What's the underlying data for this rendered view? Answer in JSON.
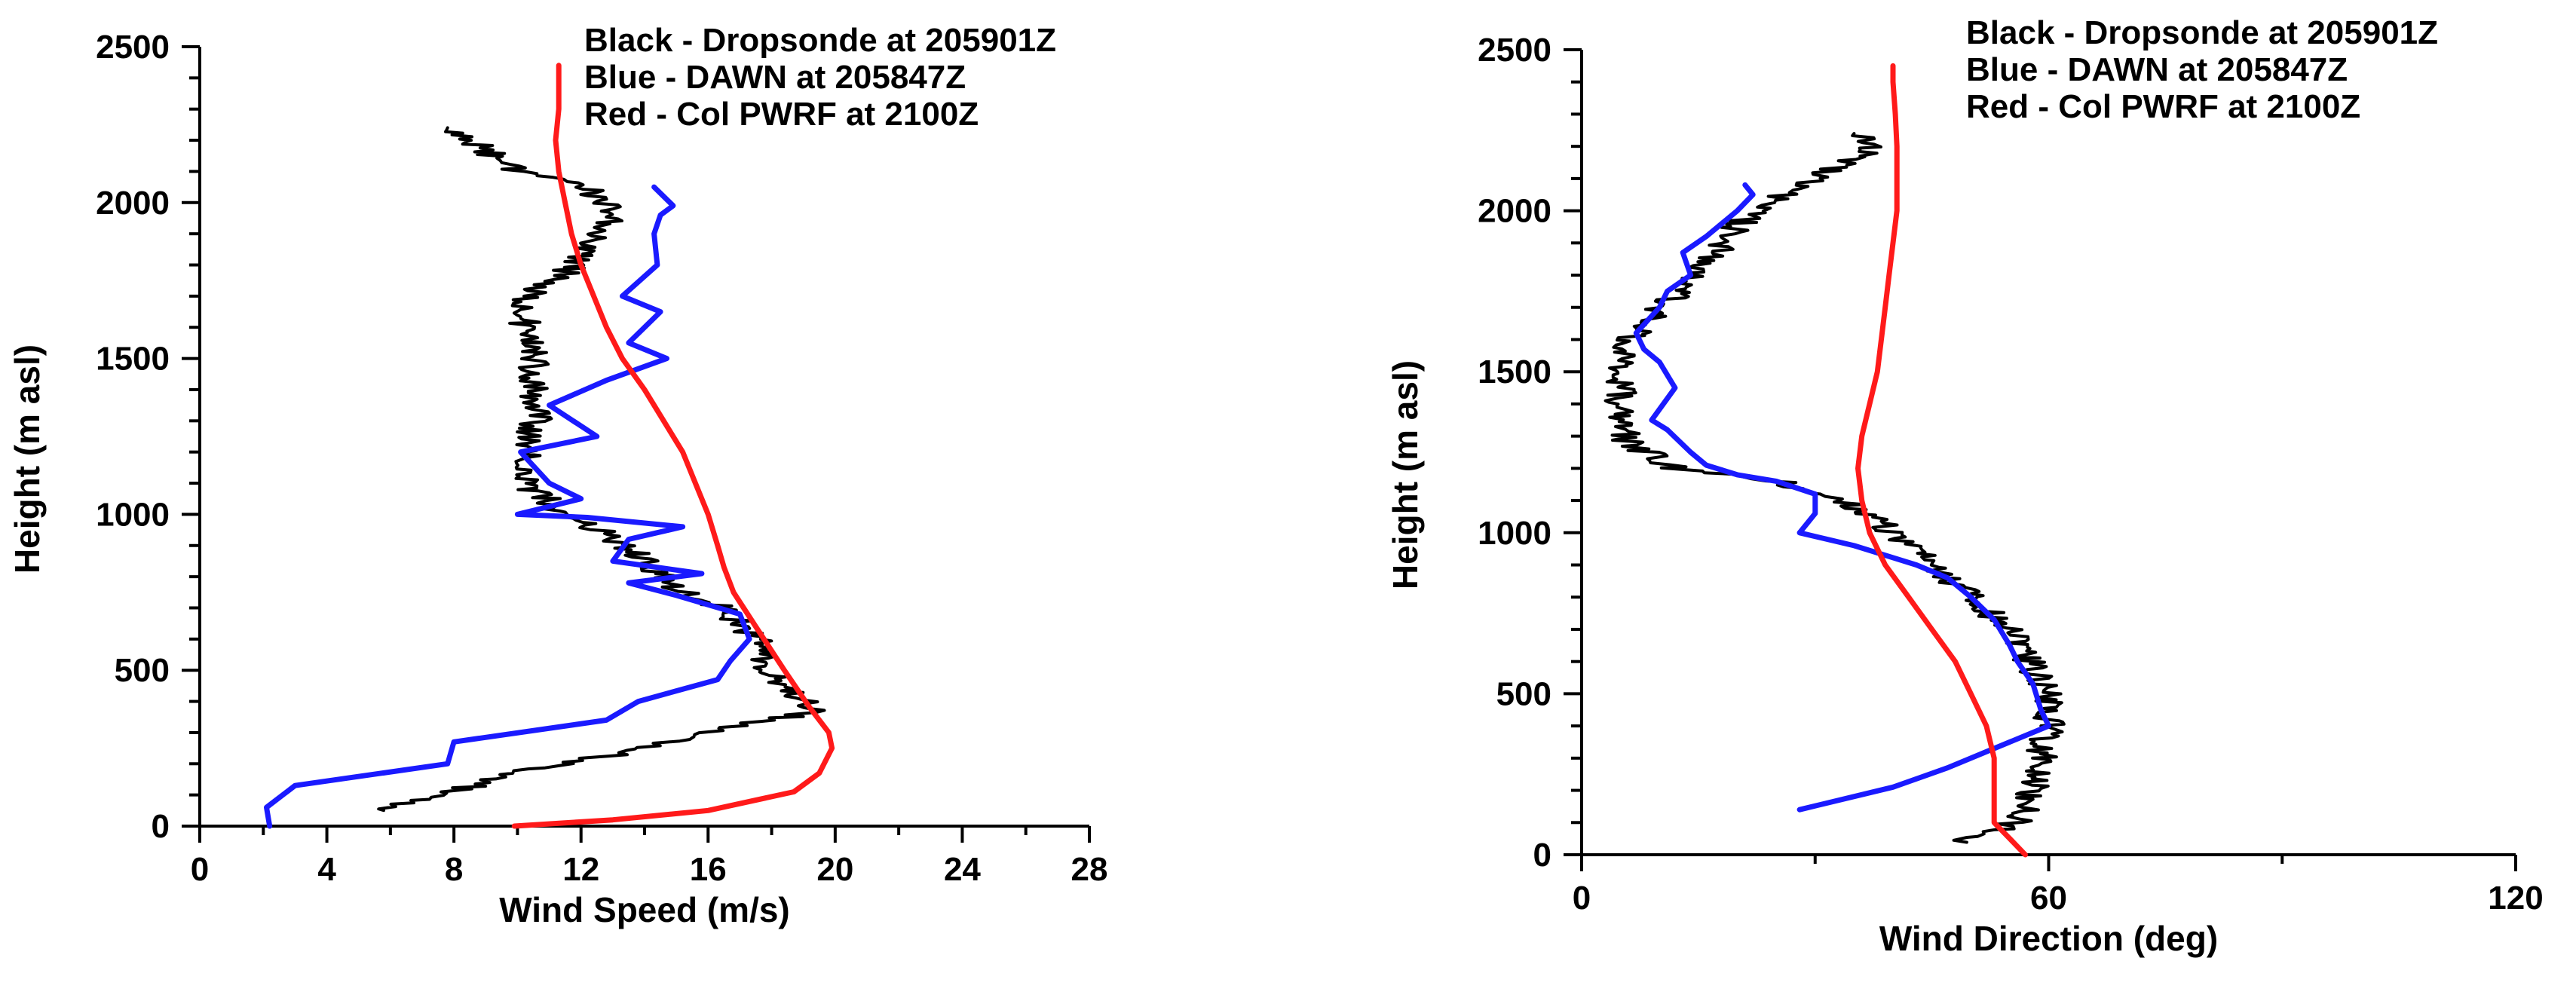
{
  "colors": {
    "dropsonde": "#000000",
    "dawn": "#1a1aff",
    "pwrf": "#ff1a1a",
    "axis": "#000000",
    "background": "#ffffff"
  },
  "chart_data": [
    {
      "type": "line",
      "xlabel": "Wind Speed (m/s)",
      "ylabel": "Height (m asl)",
      "xlim": [
        0,
        28
      ],
      "ylim": [
        0,
        2500
      ],
      "xticks": [
        0,
        4,
        8,
        12,
        16,
        20,
        24,
        28
      ],
      "yticks": [
        0,
        500,
        1000,
        1500,
        2000,
        2500
      ],
      "grid": false,
      "legend": [
        "Black - Dropsonde at 205901Z",
        "Blue - DAWN at 205847Z",
        "Red - Col PWRF at 2100Z"
      ],
      "legend_position": "top-right",
      "series": [
        {
          "color": "black",
          "jitter": 0.5,
          "points": [
            [
              5.8,
              50
            ],
            [
              7.5,
              100
            ],
            [
              10,
              170
            ],
            [
              13,
              230
            ],
            [
              16,
              300
            ],
            [
              18,
              340
            ],
            [
              19.5,
              370
            ],
            [
              18.7,
              430
            ],
            [
              17.8,
              520
            ],
            [
              17.5,
              600
            ],
            [
              16.5,
              700
            ],
            [
              15,
              760
            ],
            [
              14,
              850
            ],
            [
              12.8,
              940
            ],
            [
              11.5,
              1000
            ],
            [
              10.5,
              1080
            ],
            [
              10.3,
              1200
            ],
            [
              10.6,
              1300
            ],
            [
              10.6,
              1400
            ],
            [
              10.5,
              1500
            ],
            [
              10.2,
              1600
            ],
            [
              10.3,
              1700
            ],
            [
              11.8,
              1800
            ],
            [
              12.6,
              1900
            ],
            [
              13,
              1980
            ],
            [
              12.2,
              2050
            ],
            [
              10,
              2100
            ],
            [
              8.5,
              2200
            ],
            [
              7.8,
              2240
            ]
          ]
        },
        {
          "color": "blue",
          "points": [
            [
              2.2,
              0
            ],
            [
              2.1,
              60
            ],
            [
              3,
              130
            ],
            [
              7.8,
              200
            ],
            [
              8,
              270
            ],
            [
              12.8,
              340
            ],
            [
              13.8,
              400
            ],
            [
              16.3,
              470
            ],
            [
              16.7,
              530
            ],
            [
              17.3,
              600
            ],
            [
              17,
              680
            ],
            [
              15,
              740
            ],
            [
              13.5,
              780
            ],
            [
              15.8,
              810
            ],
            [
              13,
              850
            ],
            [
              13.5,
              920
            ],
            [
              15.2,
              960
            ],
            [
              12.2,
              990
            ],
            [
              10,
              1000
            ],
            [
              12,
              1050
            ],
            [
              11,
              1100
            ],
            [
              10.1,
              1200
            ],
            [
              12.5,
              1250
            ],
            [
              11,
              1350
            ],
            [
              12.8,
              1430
            ],
            [
              14.7,
              1500
            ],
            [
              13.5,
              1550
            ],
            [
              14.5,
              1650
            ],
            [
              13.3,
              1700
            ],
            [
              14.4,
              1800
            ],
            [
              14.3,
              1900
            ],
            [
              14.5,
              1960
            ],
            [
              14.9,
              1990
            ],
            [
              14.3,
              2050
            ]
          ]
        },
        {
          "color": "red",
          "points": [
            [
              9.9,
              0
            ],
            [
              13,
              20
            ],
            [
              16,
              50
            ],
            [
              18.7,
              110
            ],
            [
              19.5,
              170
            ],
            [
              19.9,
              250
            ],
            [
              19.8,
              300
            ],
            [
              19.2,
              380
            ],
            [
              18.4,
              500
            ],
            [
              17.5,
              640
            ],
            [
              16.8,
              750
            ],
            [
              16.5,
              830
            ],
            [
              16.3,
              900
            ],
            [
              16,
              1000
            ],
            [
              15.6,
              1100
            ],
            [
              15.2,
              1200
            ],
            [
              14.6,
              1300
            ],
            [
              14,
              1400
            ],
            [
              13.3,
              1500
            ],
            [
              12.8,
              1600
            ],
            [
              12.4,
              1700
            ],
            [
              12,
              1800
            ],
            [
              11.7,
              1900
            ],
            [
              11.5,
              2000
            ],
            [
              11.3,
              2100
            ],
            [
              11.2,
              2200
            ],
            [
              11.3,
              2300
            ],
            [
              11.3,
              2440
            ]
          ]
        }
      ]
    },
    {
      "type": "line",
      "xlabel": "Wind Direction (deg)",
      "ylabel": "Height (m asl)",
      "xlim": [
        0,
        120
      ],
      "ylim": [
        0,
        2500
      ],
      "xticks": [
        0,
        60,
        120
      ],
      "yticks": [
        0,
        500,
        1000,
        1500,
        2000,
        2500
      ],
      "grid": false,
      "legend": [
        "Black - Dropsonde at 205901Z",
        "Blue - DAWN at 205847Z",
        "Red - Col PWRF at 2100Z"
      ],
      "legend_position": "top-right",
      "series": [
        {
          "color": "black",
          "jitter": 2,
          "points": [
            [
              49,
              40
            ],
            [
              56,
              100
            ],
            [
              58,
              200
            ],
            [
              59,
              300
            ],
            [
              60,
              400
            ],
            [
              60,
              500
            ],
            [
              58,
              580
            ],
            [
              55,
              700
            ],
            [
              50,
              800
            ],
            [
              45,
              900
            ],
            [
              40,
              1000
            ],
            [
              34,
              1100
            ],
            [
              27,
              1150
            ],
            [
              20,
              1180
            ],
            [
              12,
              1200
            ],
            [
              6,
              1280
            ],
            [
              5,
              1400
            ],
            [
              5,
              1500
            ],
            [
              6,
              1600
            ],
            [
              10,
              1700
            ],
            [
              15,
              1800
            ],
            [
              18,
              1900
            ],
            [
              22,
              2000
            ],
            [
              26,
              2050
            ],
            [
              30,
              2100
            ],
            [
              35,
              2160
            ],
            [
              38,
              2200
            ],
            [
              35,
              2240
            ]
          ]
        },
        {
          "color": "blue",
          "points": [
            [
              28,
              140
            ],
            [
              40,
              210
            ],
            [
              47,
              270
            ],
            [
              53,
              330
            ],
            [
              60,
              400
            ],
            [
              59,
              450
            ],
            [
              58,
              530
            ],
            [
              56,
              600
            ],
            [
              55,
              650
            ],
            [
              53,
              730
            ],
            [
              50,
              800
            ],
            [
              47,
              860
            ],
            [
              43,
              900
            ],
            [
              39,
              930
            ],
            [
              35,
              960
            ],
            [
              28,
              1000
            ],
            [
              30,
              1060
            ],
            [
              30,
              1120
            ],
            [
              25,
              1160
            ],
            [
              20,
              1180
            ],
            [
              16,
              1210
            ],
            [
              14,
              1250
            ],
            [
              11,
              1320
            ],
            [
              9,
              1350
            ],
            [
              12,
              1450
            ],
            [
              10,
              1530
            ],
            [
              8,
              1570
            ],
            [
              7,
              1620
            ],
            [
              10,
              1700
            ],
            [
              11,
              1750
            ],
            [
              14,
              1800
            ],
            [
              13,
              1870
            ],
            [
              16,
              1920
            ],
            [
              18,
              1960
            ],
            [
              20,
              2000
            ],
            [
              22,
              2050
            ],
            [
              21,
              2080
            ]
          ]
        },
        {
          "color": "red",
          "points": [
            [
              57,
              0
            ],
            [
              55,
              50
            ],
            [
              53,
              100
            ],
            [
              53,
              200
            ],
            [
              53,
              300
            ],
            [
              52,
              400
            ],
            [
              50,
              500
            ],
            [
              48,
              600
            ],
            [
              45,
              700
            ],
            [
              42,
              800
            ],
            [
              39,
              900
            ],
            [
              37,
              1000
            ],
            [
              36,
              1100
            ],
            [
              35.5,
              1200
            ],
            [
              36,
              1300
            ],
            [
              37,
              1400
            ],
            [
              38,
              1500
            ],
            [
              38.5,
              1600
            ],
            [
              39,
              1700
            ],
            [
              39.5,
              1800
            ],
            [
              40,
              1900
            ],
            [
              40.5,
              2000
            ],
            [
              40.5,
              2100
            ],
            [
              40.5,
              2200
            ],
            [
              40.3,
              2300
            ],
            [
              40,
              2400
            ],
            [
              40,
              2450
            ]
          ]
        }
      ]
    }
  ]
}
